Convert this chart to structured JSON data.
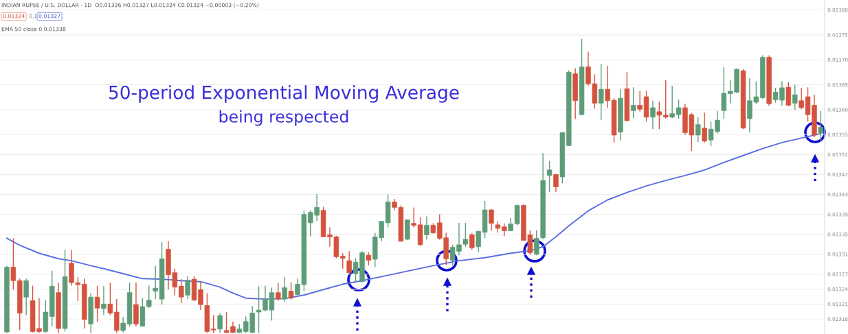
{
  "chart_data": {
    "type": "candlestick",
    "title": "50-period Exponential Moving Average",
    "subtitle": "being respected",
    "annotations": [
      "INDIAN RUPEE / U.S. DOLLAR · 1D  O0.01326 H0.01327 L0.01324 C0.01324 −0.00003 (−0.20%)",
      "0.01324",
      "0.1",
      "0.01327",
      "EMA 50 close 0 0.01338"
    ],
    "categories": [
      null,
      null,
      null,
      null,
      null,
      null,
      null,
      null,
      null,
      null,
      null,
      null,
      null,
      null,
      null,
      null,
      null,
      null,
      null,
      null,
      null,
      null,
      null,
      null,
      null,
      null,
      null,
      null,
      null,
      null,
      null,
      null,
      null,
      null,
      null,
      null,
      null,
      null,
      null,
      null,
      null,
      null,
      null,
      null,
      null,
      null,
      null,
      null,
      null,
      null,
      null,
      null,
      null,
      null,
      null,
      null,
      null,
      null,
      null,
      null,
      null,
      null,
      null,
      null,
      null,
      null,
      null,
      null,
      null,
      null,
      null,
      null,
      null,
      null,
      null,
      null,
      null,
      null,
      null,
      null,
      null,
      null,
      null,
      null,
      null,
      null,
      null,
      null,
      null,
      null,
      null,
      null,
      null,
      null,
      null,
      null,
      null,
      null,
      null,
      null,
      null,
      null,
      null,
      null,
      null,
      null,
      null,
      null,
      null,
      null,
      null,
      null,
      null,
      null,
      null,
      null,
      null,
      null,
      null,
      null,
      null,
      null,
      null,
      null,
      null,
      null,
      null
    ],
    "colors": [
      "#5e9c78",
      "#d4533e",
      "#d4533e",
      "#5e9c78",
      "#d4533e",
      "#d4533e",
      "#5e9c78",
      "#5e9c78",
      "#d4533e",
      "#5e9c78",
      "#d4533e",
      "#d4533e",
      "#d4533e",
      "#5e9c78",
      "#d4533e",
      "#5e9c78",
      "#d4533e",
      "#d4533e",
      "#5e9c78",
      "#5e9c78",
      "#d4533e",
      "#5e9c78",
      "#5e9c78",
      "#5e9c78",
      "#5e9c78",
      "#d4533e",
      "#d4533e",
      "#d4533e",
      "#5e9c78",
      "#d4533e",
      "#d4533e",
      "#d4533e",
      "#d4533e",
      "#5e9c78",
      "#d4533e",
      "#d4533e",
      "#5e9c78",
      "#5e9c78",
      "#5e9c78",
      "#5e9c78",
      "#5e9c78",
      "#5e9c78",
      "#d4533e",
      "#5e9c78",
      "#d4533e",
      "#5e9c78",
      "#5e9c78",
      "#5e9c78",
      "#5e9c78",
      "#d4533e",
      "#d4533e",
      "#d4533e",
      "#d4533e",
      "#d4533e",
      "#5e9c78",
      "#5e9c78",
      "#d4533e",
      "#5e9c78",
      "#5e9c78",
      "#5e9c78",
      "#d4533e",
      "#d4533e",
      "#5e9c78",
      "#d4533e",
      "#d4533e",
      "#5e9c78",
      "#d4533e",
      "#d4533e",
      "#d4533e",
      "#5e9c78",
      "#5e9c78",
      "#5e9c78",
      "#d4533e",
      "#5e9c78",
      "#5e9c78",
      "#d4533e",
      "#d4533e",
      "#d4533e",
      "#5e9c78",
      "#5e9c78",
      "#d4533e",
      "#d4533e",
      "#5e9c78",
      "#5e9c78",
      "#5e9c78",
      "#d4533e",
      "#5e9c78",
      "#5e9c78",
      "#d4533e",
      "#5e9c78",
      "#d4533e",
      "#d4533e",
      "#5e9c78",
      "#d4533e",
      "#d4533e",
      "#5e9c78",
      "#d4533e",
      "#5e9c78",
      "#d4533e",
      "#d4533e",
      "#5e9c78",
      "#d4533e",
      "#d4533e",
      "#5e9c78",
      "#5e9c78",
      "#d4533e",
      "#d4533e",
      "#5e9c78",
      "#d4533e",
      "#5e9c78",
      "#5e9c78",
      "#5e9c78",
      "#5e9c78",
      "#5e9c78",
      "#d4533e",
      "#5e9c78",
      "#5e9c78",
      "#5e9c78",
      "#d4533e",
      "#5e9c78",
      "#5e9c78",
      "#d4533e",
      "#5e9c78",
      "#d4533e",
      "#d4533e",
      "#d4533e",
      "#5e9c78"
    ],
    "ohlc": [
      [
        0.013154,
        0.013287,
        0.013152,
        0.013284
      ],
      [
        0.013284,
        0.013342,
        0.013239,
        0.013257
      ],
      [
        0.013257,
        0.013261,
        0.013158,
        0.013192
      ],
      [
        0.013224,
        0.013261,
        0.013188,
        0.013257
      ],
      [
        0.013217,
        0.013247,
        0.013153,
        0.013155
      ],
      [
        0.013161,
        0.013222,
        0.013152,
        0.013155
      ],
      [
        0.013155,
        0.013218,
        0.013152,
        0.013194
      ],
      [
        0.013185,
        0.013277,
        0.013165,
        0.013246
      ],
      [
        0.013233,
        0.013253,
        0.013152,
        0.013161
      ],
      [
        0.013161,
        0.013319,
        0.013155,
        0.013265
      ],
      [
        0.013292,
        0.013319,
        0.013247,
        0.013253
      ],
      [
        0.013253,
        0.013264,
        0.013216,
        0.013249
      ],
      [
        0.01325,
        0.013261,
        0.013161,
        0.013179
      ],
      [
        0.01317,
        0.013232,
        0.013152,
        0.013224
      ],
      [
        0.013224,
        0.013247,
        0.013174,
        0.013202
      ],
      [
        0.013201,
        0.013246,
        0.013188,
        0.01321
      ],
      [
        0.01321,
        0.013253,
        0.013188,
        0.013192
      ],
      [
        0.013194,
        0.01322,
        0.013152,
        0.013157
      ],
      [
        0.013157,
        0.013184,
        0.013153,
        0.013172
      ],
      [
        0.01317,
        0.013253,
        0.013165,
        0.013233
      ],
      [
        0.013209,
        0.013253,
        0.013165,
        0.01317
      ],
      [
        0.013166,
        0.013222,
        0.013164,
        0.013205
      ],
      [
        0.013205,
        0.013247,
        0.013202,
        0.013218
      ],
      [
        0.013236,
        0.013287,
        0.01322,
        0.013242
      ],
      [
        0.01322,
        0.013334,
        0.013209,
        0.013301
      ],
      [
        0.01332,
        0.013336,
        0.013239,
        0.013269
      ],
      [
        0.013273,
        0.013281,
        0.013227,
        0.013244
      ],
      [
        0.013246,
        0.01326,
        0.013212,
        0.013224
      ],
      [
        0.013228,
        0.013266,
        0.01322,
        0.013258
      ],
      [
        0.01326,
        0.013266,
        0.013216,
        0.013218
      ],
      [
        0.013239,
        0.013254,
        0.013198,
        0.013209
      ],
      [
        0.013207,
        0.013232,
        0.013152,
        0.013155
      ],
      [
        0.01316,
        0.013188,
        0.013152,
        0.013158
      ],
      [
        0.01316,
        0.013192,
        0.013153,
        0.013187
      ],
      [
        0.013157,
        0.013194,
        0.013152,
        0.013153
      ],
      [
        0.013165,
        0.013175,
        0.013152,
        0.013153
      ],
      [
        0.013153,
        0.01317,
        0.013152,
        0.01316
      ],
      [
        0.013155,
        0.013185,
        0.013152,
        0.013175
      ],
      [
        0.013153,
        0.013206,
        0.013152,
        0.013192
      ],
      [
        0.013194,
        0.013246,
        0.013152,
        0.013198
      ],
      [
        0.013198,
        0.013247,
        0.013195,
        0.01322
      ],
      [
        0.013198,
        0.013243,
        0.013177,
        0.013233
      ],
      [
        0.013233,
        0.013253,
        0.013217,
        0.01322
      ],
      [
        0.01322,
        0.013264,
        0.013214,
        0.013243
      ],
      [
        0.013236,
        0.013254,
        0.013219,
        0.013222
      ],
      [
        0.013229,
        0.013261,
        0.013225,
        0.01325
      ],
      [
        0.013249,
        0.013398,
        0.013236,
        0.01339
      ],
      [
        0.013373,
        0.013398,
        0.013346,
        0.013394
      ],
      [
        0.013388,
        0.013431,
        0.013377,
        0.013404
      ],
      [
        0.013398,
        0.013405,
        0.013344,
        0.013345
      ],
      [
        0.013349,
        0.013364,
        0.013325,
        0.013345
      ],
      [
        0.013345,
        0.013347,
        0.013302,
        0.013305
      ],
      [
        0.013306,
        0.013312,
        0.013281,
        0.013302
      ],
      [
        0.013297,
        0.013316,
        0.013271,
        0.013273
      ],
      [
        0.013271,
        0.013302,
        0.013253,
        0.013294
      ],
      [
        0.013255,
        0.013316,
        0.013254,
        0.013313
      ],
      [
        0.013308,
        0.013314,
        0.013288,
        0.013298
      ],
      [
        0.0133,
        0.013353,
        0.013284,
        0.013345
      ],
      [
        0.013343,
        0.013377,
        0.013336,
        0.013376
      ],
      [
        0.013373,
        0.01343,
        0.013364,
        0.013415
      ],
      [
        0.013415,
        0.013421,
        0.013398,
        0.013404
      ],
      [
        0.013404,
        0.013408,
        0.013336,
        0.013336
      ],
      [
        0.01334,
        0.01338,
        0.013338,
        0.013379
      ],
      [
        0.013372,
        0.013404,
        0.013364,
        0.013368
      ],
      [
        0.013369,
        0.013384,
        0.013327,
        0.013329
      ],
      [
        0.013349,
        0.013386,
        0.013339,
        0.013368
      ],
      [
        0.013368,
        0.013372,
        0.013351,
        0.013353
      ],
      [
        0.013373,
        0.01339,
        0.013339,
        0.013342
      ],
      [
        0.013343,
        0.013353,
        0.013288,
        0.013301
      ],
      [
        0.013298,
        0.013329,
        0.013288,
        0.013324
      ],
      [
        0.013316,
        0.013373,
        0.013308,
        0.013329
      ],
      [
        0.01333,
        0.013373,
        0.013325,
        0.01334
      ],
      [
        0.013349,
        0.013353,
        0.013319,
        0.013323
      ],
      [
        0.013325,
        0.013357,
        0.013314,
        0.013356
      ],
      [
        0.013354,
        0.013417,
        0.013342,
        0.013399
      ],
      [
        0.013399,
        0.0134,
        0.013357,
        0.013372
      ],
      [
        0.013369,
        0.013376,
        0.013353,
        0.013362
      ],
      [
        0.013365,
        0.013372,
        0.013346,
        0.013357
      ],
      [
        0.013357,
        0.013383,
        0.013356,
        0.013371
      ],
      [
        0.013371,
        0.01341,
        0.013368,
        0.013408
      ],
      [
        0.013408,
        0.01341,
        0.013337,
        0.013338
      ],
      [
        0.013349,
        0.013358,
        0.013309,
        0.013313
      ],
      [
        0.01331,
        0.013358,
        0.013308,
        0.013342
      ],
      [
        0.013343,
        0.013513,
        0.01334,
        0.013458
      ],
      [
        0.013468,
        0.013497,
        0.013435,
        0.013479
      ],
      [
        0.01347,
        0.013471,
        0.013435,
        0.013445
      ],
      [
        0.013465,
        0.013555,
        0.013452,
        0.013554
      ],
      [
        0.013528,
        0.013679,
        0.013527,
        0.013675
      ],
      [
        0.013672,
        0.013683,
        0.013581,
        0.013618
      ],
      [
        0.01359,
        0.013742,
        0.013589,
        0.013686
      ],
      [
        0.013686,
        0.013716,
        0.013648,
        0.013652
      ],
      [
        0.013652,
        0.013671,
        0.013602,
        0.013613
      ],
      [
        0.013613,
        0.013692,
        0.013579,
        0.013641
      ],
      [
        0.013641,
        0.013688,
        0.013604,
        0.013618
      ],
      [
        0.013619,
        0.013623,
        0.013534,
        0.013549
      ],
      [
        0.013555,
        0.013641,
        0.013538,
        0.013623
      ],
      [
        0.013642,
        0.013675,
        0.013576,
        0.013578
      ],
      [
        0.013598,
        0.013645,
        0.013583,
        0.013609
      ],
      [
        0.013609,
        0.013637,
        0.013596,
        0.013601
      ],
      [
        0.013626,
        0.013638,
        0.013576,
        0.013585
      ],
      [
        0.013585,
        0.013618,
        0.013561,
        0.013604
      ],
      [
        0.013596,
        0.013616,
        0.013561,
        0.013589
      ],
      [
        0.013589,
        0.013659,
        0.013582,
        0.013585
      ],
      [
        0.013585,
        0.013648,
        0.013583,
        0.013592
      ],
      [
        0.01359,
        0.01362,
        0.013582,
        0.013604
      ],
      [
        0.013604,
        0.013612,
        0.013549,
        0.013554
      ],
      [
        0.01359,
        0.013593,
        0.013517,
        0.013549
      ],
      [
        0.013549,
        0.013585,
        0.013535,
        0.01357
      ],
      [
        0.013563,
        0.013594,
        0.013534,
        0.013537
      ],
      [
        0.013539,
        0.013576,
        0.013527,
        0.013561
      ],
      [
        0.013556,
        0.013597,
        0.013552,
        0.013579
      ],
      [
        0.013598,
        0.013685,
        0.013582,
        0.013633
      ],
      [
        0.013632,
        0.013659,
        0.013613,
        0.013637
      ],
      [
        0.013635,
        0.013683,
        0.013633,
        0.013681
      ],
      [
        0.013678,
        0.013681,
        0.013561,
        0.013563
      ],
      [
        0.013582,
        0.013663,
        0.013554,
        0.013618
      ],
      [
        0.013615,
        0.013657,
        0.013611,
        0.013626
      ],
      [
        0.013624,
        0.013709,
        0.013622,
        0.013705
      ],
      [
        0.013705,
        0.013709,
        0.013608,
        0.013612
      ],
      [
        0.01362,
        0.013644,
        0.013614,
        0.013635
      ],
      [
        0.013619,
        0.013657,
        0.013608,
        0.013644
      ],
      [
        0.013645,
        0.013655,
        0.013607,
        0.013609
      ],
      [
        0.013613,
        0.01365,
        0.0136,
        0.01363
      ],
      [
        0.013618,
        0.013644,
        0.013601,
        0.013604
      ],
      [
        0.013626,
        0.013645,
        0.013576,
        0.01359
      ],
      [
        0.013609,
        0.01363,
        0.013545,
        0.013549
      ],
      [
        0.013553,
        0.013597,
        0.013538,
        0.013565
      ]
    ],
    "series": [
      {
        "type": "line",
        "color": "#5b6ee1",
        "values": [
          0.013342,
          null,
          0.013328,
          null,
          null,
          0.013312,
          null,
          null,
          0.013301,
          null,
          0.013297,
          null,
          null,
          0.013287,
          null,
          0.013281,
          null,
          null,
          0.013271,
          null,
          null,
          0.013261,
          null,
          null,
          0.01326,
          null,
          null,
          0.013257,
          null,
          null,
          0.013255,
          null,
          null,
          0.013244,
          null,
          0.013232,
          null,
          0.013222,
          null,
          null,
          0.01322,
          null,
          null,
          0.013221,
          null,
          null,
          0.013228,
          null,
          null,
          0.013239,
          null,
          null,
          0.01325,
          null,
          null,
          0.013257,
          null,
          null,
          0.013265,
          null,
          null,
          null,
          0.013276,
          null,
          null,
          null,
          0.013287,
          null,
          null,
          null,
          0.013297,
          null,
          null,
          null,
          0.013303,
          null,
          null,
          null,
          0.013312,
          null,
          null,
          0.013317,
          null,
          0.013325,
          null,
          0.013345,
          null,
          0.013367,
          null,
          null,
          0.013397,
          null,
          null,
          0.013419,
          null,
          null,
          0.013434,
          null,
          null,
          0.013447,
          null,
          null,
          0.013458,
          null,
          null,
          0.013468,
          null,
          null,
          0.013479,
          null,
          null,
          0.013494,
          null,
          null,
          0.013508,
          null,
          null,
          0.013522,
          null,
          null,
          0.013534,
          null,
          null,
          0.013543,
          null,
          null,
          0.013552
        ]
      }
    ],
    "ylim": [
      0.01315,
      0.01382
    ],
    "yticks": [
      0.01318,
      0.01321,
      0.01324,
      0.01327,
      0.01331,
      0.01335,
      0.01339,
      0.01343,
      0.01347,
      0.01351,
      0.01355,
      {
        "value": 0.0136,
        "label": "0.01360"
      },
      0.01365,
      {
        "value": 0.0137,
        "label": "0.01370"
      },
      0.01375,
      {
        "value": 0.0138,
        "label": "0.01380"
      }
    ],
    "grid": "y"
  }
}
